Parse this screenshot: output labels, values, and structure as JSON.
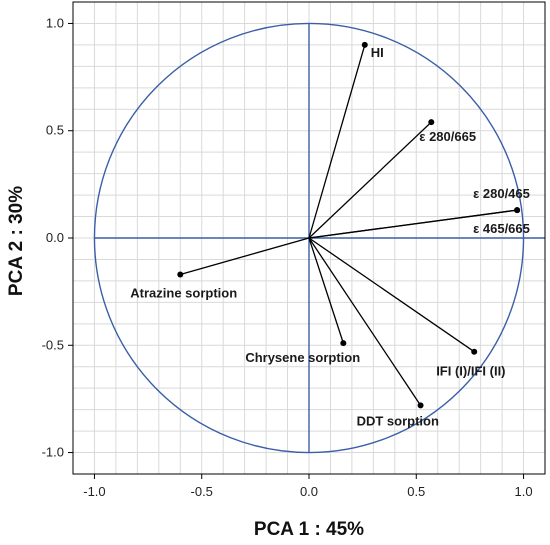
{
  "chart_data": {
    "type": "scatter",
    "title": "",
    "xlabel": "PCA 1 : 45%",
    "ylabel": "PCA 2 : 30%",
    "xlim": [
      -1.1,
      1.1
    ],
    "ylim": [
      -1.1,
      1.1
    ],
    "xticks": [
      "-1.0",
      "-0.5",
      "0.0",
      "0.5",
      "1.0"
    ],
    "yticks": [
      "-1.0",
      "-0.5",
      "0.0",
      "0.5",
      "1.0"
    ],
    "grid": true,
    "unit_circle": true,
    "colors": {
      "circle": "#3a5fa8",
      "axes": "#3a5fa8",
      "vector": "#000000",
      "grid": "#d9d9d9"
    },
    "vectors": [
      {
        "label": "HI",
        "x": 0.26,
        "y": 0.9
      },
      {
        "label": "ε 280/665",
        "x": 0.57,
        "y": 0.54
      },
      {
        "label": "ε 280/465",
        "x": 0.97,
        "y": 0.13
      },
      {
        "label": "ε 465/665",
        "x": 0.97,
        "y": 0.13
      },
      {
        "label": "Atrazine sorption",
        "x": -0.6,
        "y": -0.17
      },
      {
        "label": "Chrysene sorption",
        "x": 0.16,
        "y": -0.49
      },
      {
        "label": "IFI (I)/IFI (II)",
        "x": 0.77,
        "y": -0.53
      },
      {
        "label": "DDT sorption",
        "x": 0.52,
        "y": -0.78
      }
    ]
  }
}
